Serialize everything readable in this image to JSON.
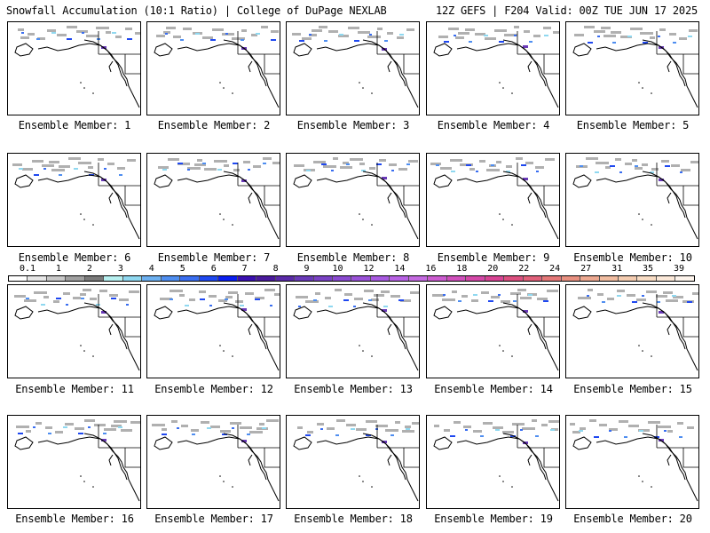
{
  "header": {
    "left": "Snowfall Accumulation (10:1 Ratio) | College of DuPage NEXLAB",
    "right": "12Z GEFS | F204 Valid: 00Z TUE JUN 17 2025"
  },
  "colorbar": {
    "ticks": [
      "0.1",
      "1",
      "2",
      "3",
      "4",
      "5",
      "6",
      "7",
      "8",
      "9",
      "10",
      "12",
      "14",
      "16",
      "18",
      "20",
      "22",
      "24",
      "27",
      "31",
      "35",
      "39"
    ],
    "colors": [
      "#ffffff",
      "#e6e6e6",
      "#c8c8c8",
      "#a0a0a0",
      "#7a7a7a",
      "#b7f0f0",
      "#8fd8f0",
      "#6cb0f0",
      "#4f8ef0",
      "#3a6ef0",
      "#1f48f0",
      "#0a1ef0",
      "#3a10b0",
      "#4a1a9c",
      "#5a2aa8",
      "#6a3ab8",
      "#7a42c4",
      "#8a4ad0",
      "#9a52d8",
      "#a85ae0",
      "#b862e4",
      "#c46ae0",
      "#cc5cd0",
      "#d050bc",
      "#d448a8",
      "#d84494",
      "#dc5080",
      "#e0607a",
      "#e47878",
      "#e89080",
      "#eca890",
      "#f0bca0",
      "#f4ccb0",
      "#f8dcc4",
      "#fbe8d8",
      "#fdf4ec"
    ]
  },
  "panels": [
    {
      "label": "Ensemble Member: 1"
    },
    {
      "label": "Ensemble Member: 2"
    },
    {
      "label": "Ensemble Member: 3"
    },
    {
      "label": "Ensemble Member: 4"
    },
    {
      "label": "Ensemble Member: 5"
    },
    {
      "label": "Ensemble Member: 6"
    },
    {
      "label": "Ensemble Member: 7"
    },
    {
      "label": "Ensemble Member: 8"
    },
    {
      "label": "Ensemble Member: 9"
    },
    {
      "label": "Ensemble Member: 10"
    },
    {
      "label": "Ensemble Member: 11"
    },
    {
      "label": "Ensemble Member: 12"
    },
    {
      "label": "Ensemble Member: 13"
    },
    {
      "label": "Ensemble Member: 14"
    },
    {
      "label": "Ensemble Member: 15"
    },
    {
      "label": "Ensemble Member: 16"
    },
    {
      "label": "Ensemble Member: 17"
    },
    {
      "label": "Ensemble Member: 18"
    },
    {
      "label": "Ensemble Member: 19"
    },
    {
      "label": "Ensemble Member: 20"
    }
  ]
}
